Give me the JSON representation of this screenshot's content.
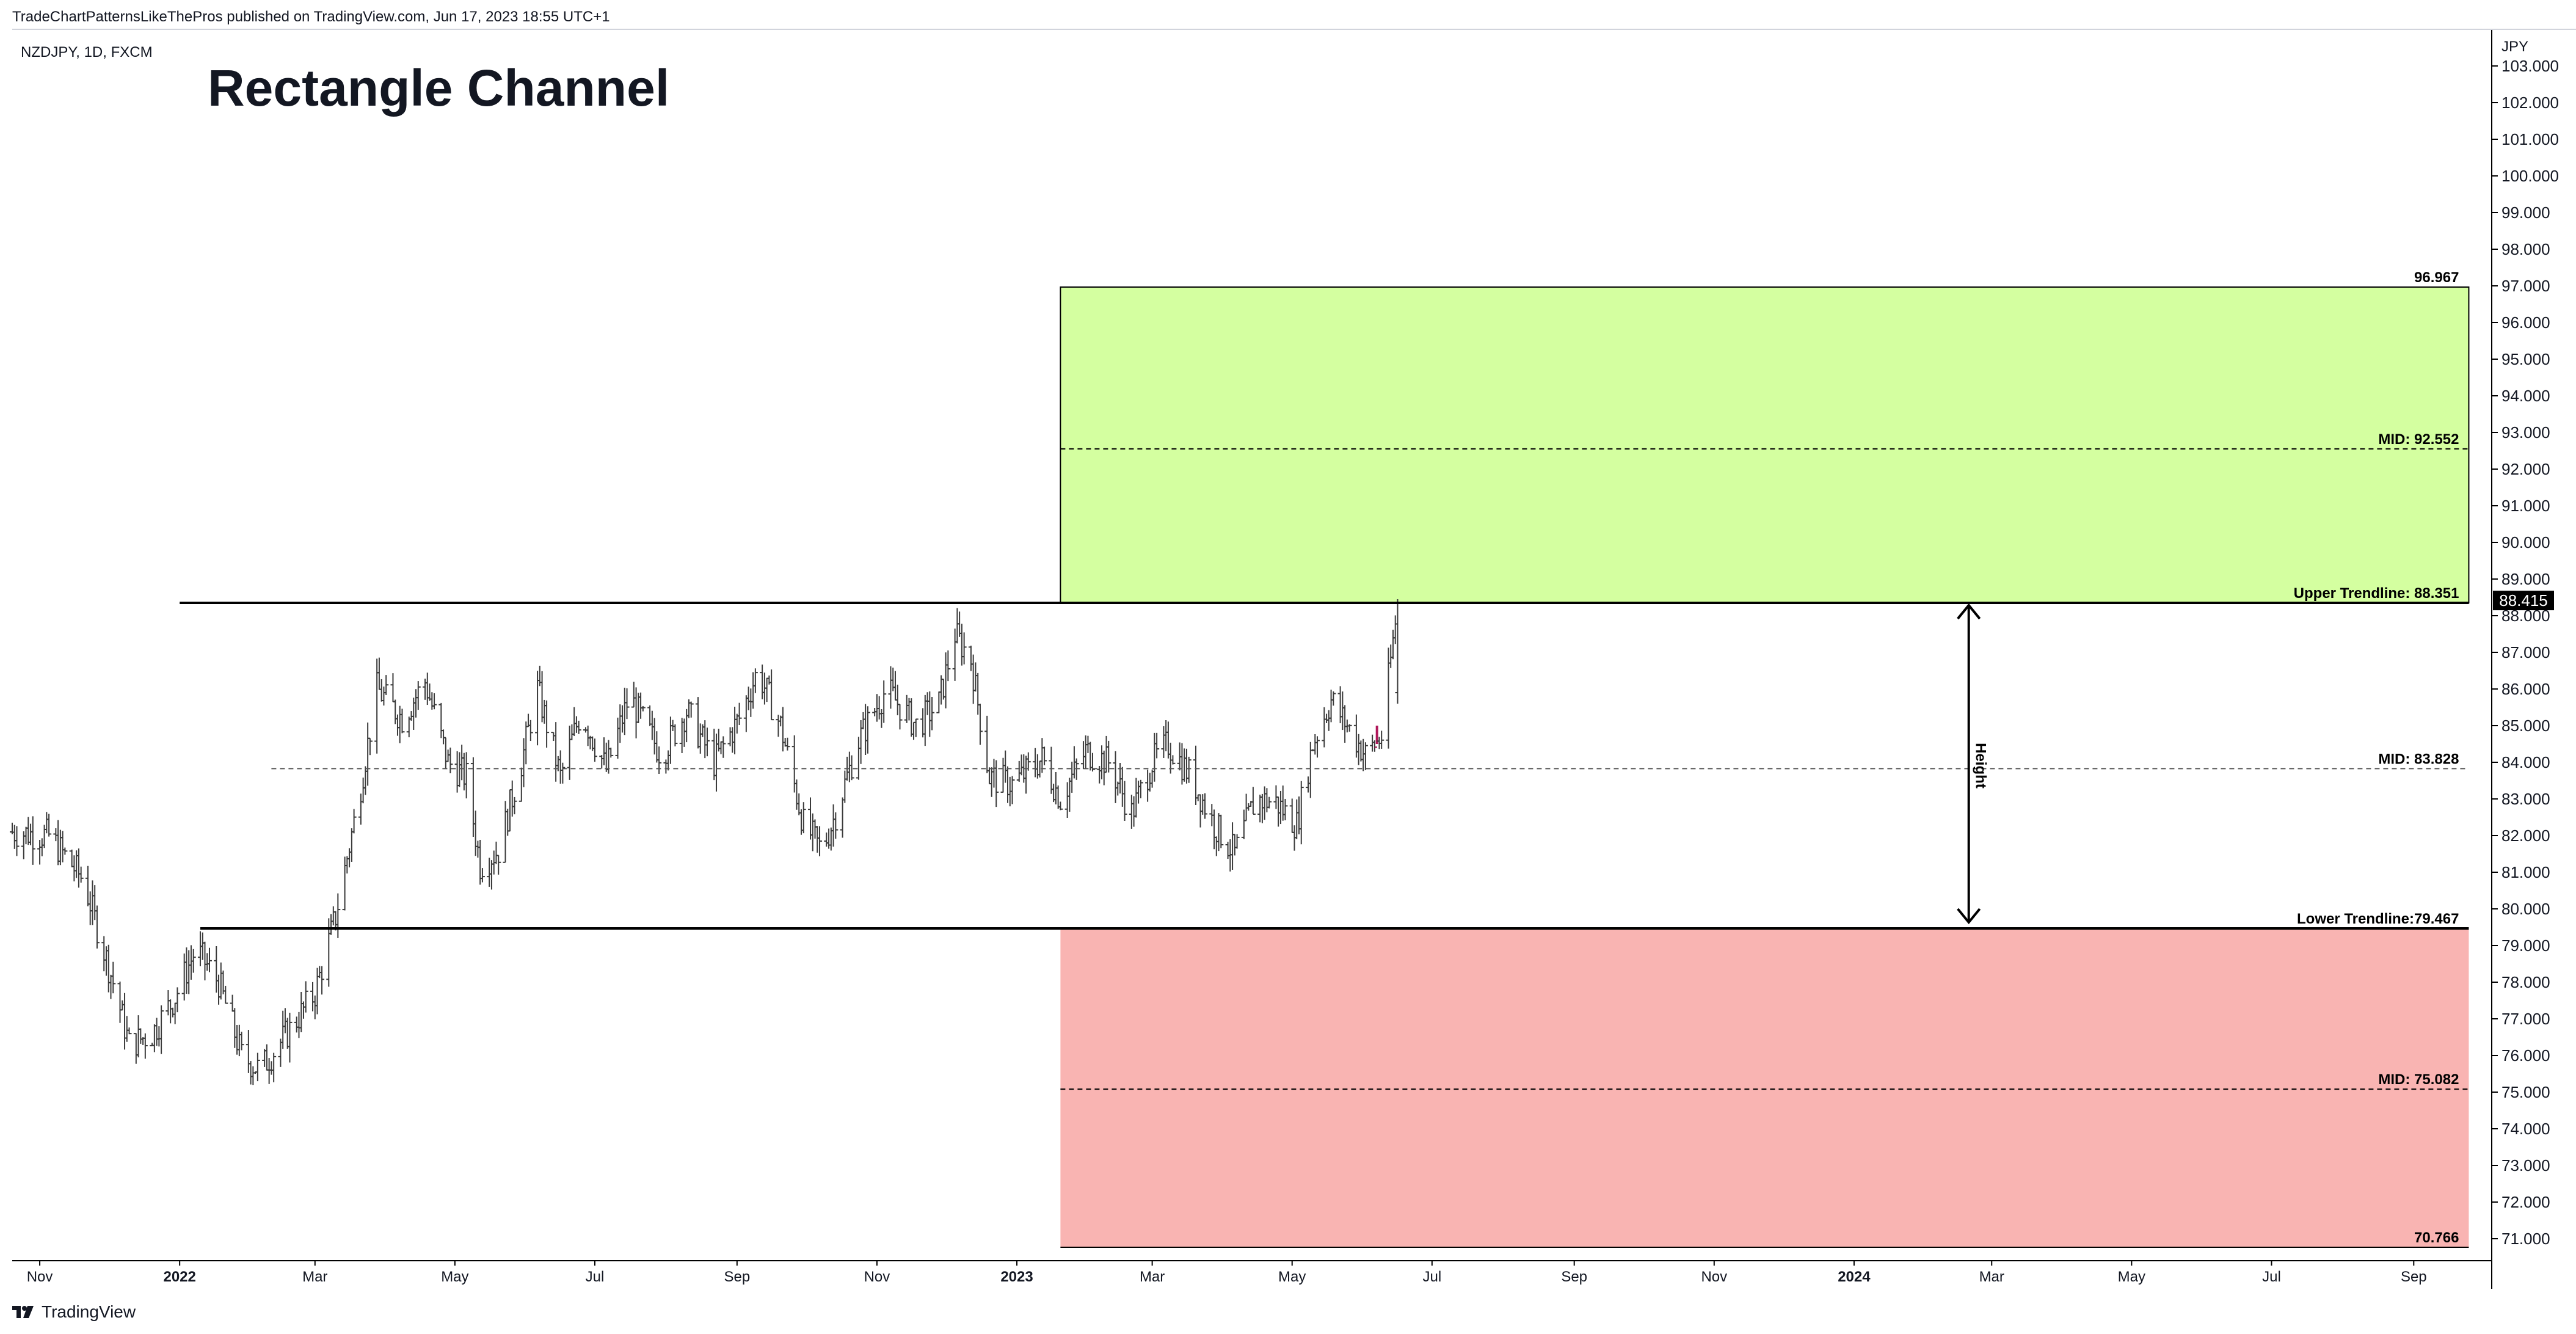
{
  "header": {
    "publish_line": "TradeChartPatternsLikeThePros published on TradingView.com, Jun 17, 2023 18:55 UTC+1",
    "symbol_line": "NZDJPY, 1D, FXCM"
  },
  "footer": {
    "brand": "TradingView",
    "brand_icon": "tradingview-logo-icon"
  },
  "colors": {
    "target_zone": "#d4ffa0",
    "stop_zone": "#f9b4b2",
    "bars": "#3a3a3a",
    "last_bar": "#b0175a",
    "lines": "#000000",
    "price_badge_bg": "#000000",
    "price_badge_text": "#ffffff"
  },
  "chart_data": {
    "type": "ohlc",
    "title": "Rectangle Channel",
    "symbol": "NZDJPY",
    "timeframe": "1D",
    "source": "FXCM",
    "y_unit": "JPY",
    "ylim": [
      70.4,
      104.0
    ],
    "xlim": [
      "2021-10-20",
      "2024-10-05"
    ],
    "grid": false,
    "y_ticks": [
      "71.000",
      "72.000",
      "73.000",
      "74.000",
      "75.000",
      "76.000",
      "77.000",
      "78.000",
      "79.000",
      "80.000",
      "81.000",
      "82.000",
      "83.000",
      "84.000",
      "85.000",
      "86.000",
      "87.000",
      "88.000",
      "89.000",
      "90.000",
      "91.000",
      "92.000",
      "93.000",
      "94.000",
      "95.000",
      "96.000",
      "97.000",
      "98.000",
      "99.000",
      "100.000",
      "101.000",
      "102.000",
      "103.000"
    ],
    "x_ticks": [
      {
        "label": "Nov",
        "date": "2021-11-01"
      },
      {
        "label": "2022",
        "date": "2022-01-01"
      },
      {
        "label": "Mar",
        "date": "2022-03-01"
      },
      {
        "label": "May",
        "date": "2022-05-01"
      },
      {
        "label": "Jul",
        "date": "2022-07-01"
      },
      {
        "label": "Sep",
        "date": "2022-09-01"
      },
      {
        "label": "Nov",
        "date": "2022-11-01"
      },
      {
        "label": "2023",
        "date": "2023-01-01"
      },
      {
        "label": "Mar",
        "date": "2023-03-01"
      },
      {
        "label": "May",
        "date": "2023-05-01"
      },
      {
        "label": "Jul",
        "date": "2023-07-01"
      },
      {
        "label": "Sep",
        "date": "2023-09-01"
      },
      {
        "label": "Nov",
        "date": "2023-11-01"
      },
      {
        "label": "2024",
        "date": "2024-01-01"
      },
      {
        "label": "Mar",
        "date": "2024-03-01"
      },
      {
        "label": "May",
        "date": "2024-05-01"
      },
      {
        "label": "Jul",
        "date": "2024-07-01"
      },
      {
        "label": "Sep",
        "date": "2024-09-01"
      }
    ],
    "last_price": "88.415",
    "price_path": [
      [
        "2021-10-20",
        82.1
      ],
      [
        "2021-11-05",
        82.0
      ],
      [
        "2021-11-20",
        80.8
      ],
      [
        "2021-12-03",
        78.0
      ],
      [
        "2021-12-10",
        76.3
      ],
      [
        "2021-12-20",
        76.6
      ],
      [
        "2021-12-30",
        77.6
      ],
      [
        "2022-01-08",
        78.9
      ],
      [
        "2022-01-18",
        78.0
      ],
      [
        "2022-01-28",
        76.0
      ],
      [
        "2022-02-05",
        75.6
      ],
      [
        "2022-02-18",
        76.7
      ],
      [
        "2022-03-01",
        77.7
      ],
      [
        "2022-03-10",
        79.8
      ],
      [
        "2022-03-20",
        83.0
      ],
      [
        "2022-03-28",
        86.0
      ],
      [
        "2022-04-08",
        85.2
      ],
      [
        "2022-04-18",
        86.2
      ],
      [
        "2022-04-28",
        84.0
      ],
      [
        "2022-05-06",
        83.6
      ],
      [
        "2022-05-12",
        81.2
      ],
      [
        "2022-05-20",
        81.6
      ],
      [
        "2022-05-30",
        84.0
      ],
      [
        "2022-06-06",
        86.0
      ],
      [
        "2022-06-16",
        83.6
      ],
      [
        "2022-06-25",
        85.4
      ],
      [
        "2022-07-06",
        83.8
      ],
      [
        "2022-07-16",
        85.8
      ],
      [
        "2022-07-30",
        84.2
      ],
      [
        "2022-08-10",
        85.4
      ],
      [
        "2022-08-22",
        84.0
      ],
      [
        "2022-09-02",
        85.2
      ],
      [
        "2022-09-10",
        86.5
      ],
      [
        "2022-09-20",
        85.0
      ],
      [
        "2022-09-30",
        82.3
      ],
      [
        "2022-10-08",
        81.6
      ],
      [
        "2022-10-14",
        82.6
      ],
      [
        "2022-10-24",
        84.6
      ],
      [
        "2022-11-05",
        86.0
      ],
      [
        "2022-11-18",
        85.0
      ],
      [
        "2022-11-28",
        85.6
      ],
      [
        "2022-12-05",
        87.5
      ],
      [
        "2022-12-12",
        86.8
      ],
      [
        "2022-12-20",
        83.6
      ],
      [
        "2022-12-30",
        83.4
      ],
      [
        "2023-01-12",
        84.1
      ],
      [
        "2023-01-20",
        83.0
      ],
      [
        "2023-01-31",
        84.3
      ],
      [
        "2023-02-10",
        84.0
      ],
      [
        "2023-02-20",
        82.6
      ],
      [
        "2023-03-01",
        84.0
      ],
      [
        "2023-03-08",
        84.5
      ],
      [
        "2023-03-18",
        83.6
      ],
      [
        "2023-03-28",
        82.3
      ],
      [
        "2023-04-06",
        81.5
      ],
      [
        "2023-04-15",
        83.0
      ],
      [
        "2023-04-24",
        82.9
      ],
      [
        "2023-05-03",
        82.3
      ],
      [
        "2023-05-10",
        84.5
      ],
      [
        "2023-05-18",
        85.7
      ],
      [
        "2023-05-25",
        85.0
      ],
      [
        "2023-06-02",
        84.2
      ],
      [
        "2023-06-09",
        84.7
      ],
      [
        "2023-06-16",
        88.35
      ]
    ],
    "final_bar": {
      "date": "2023-06-16",
      "high": 88.45,
      "low": 85.6,
      "open": 85.9,
      "close": 88.415
    },
    "highlight_bar": {
      "date": "2023-06-07",
      "high": 85.0,
      "low": 84.5
    },
    "levels": [
      {
        "name": "target",
        "value": 96.967,
        "label": "96.967"
      },
      {
        "name": "target-mid",
        "value": 92.552,
        "label": "MID: 92.552"
      },
      {
        "name": "upper-trendline",
        "value": 88.351,
        "label": "Upper Trendline: 88.351"
      },
      {
        "name": "channel-mid",
        "value": 83.828,
        "label": "MID: 83.828"
      },
      {
        "name": "lower-trendline",
        "value": 79.467,
        "label": "Lower Trendline:79.467"
      },
      {
        "name": "stop-mid",
        "value": 75.082,
        "label": "MID: 75.082"
      },
      {
        "name": "stop",
        "value": 70.766,
        "label": "70.766"
      }
    ],
    "zones": [
      {
        "name": "target-zone",
        "from": 88.351,
        "to": 96.967,
        "start": "2023-01-20",
        "end": "2024-09-25"
      },
      {
        "name": "stop-zone",
        "from": 70.766,
        "to": 79.467,
        "start": "2023-01-20",
        "end": "2024-09-25"
      }
    ],
    "trendlines": {
      "upper": {
        "start": "2022-01-01",
        "end": "2024-09-25"
      },
      "lower": {
        "start": "2022-01-10",
        "end": "2024-09-25"
      },
      "channel_mid": {
        "start": "2022-02-10",
        "end": "2024-09-25"
      },
      "zone_mid_start": "2023-01-20"
    },
    "height_arrow": {
      "date": "2024-02-20",
      "from": 79.467,
      "to": 88.351,
      "label": "Height"
    }
  }
}
